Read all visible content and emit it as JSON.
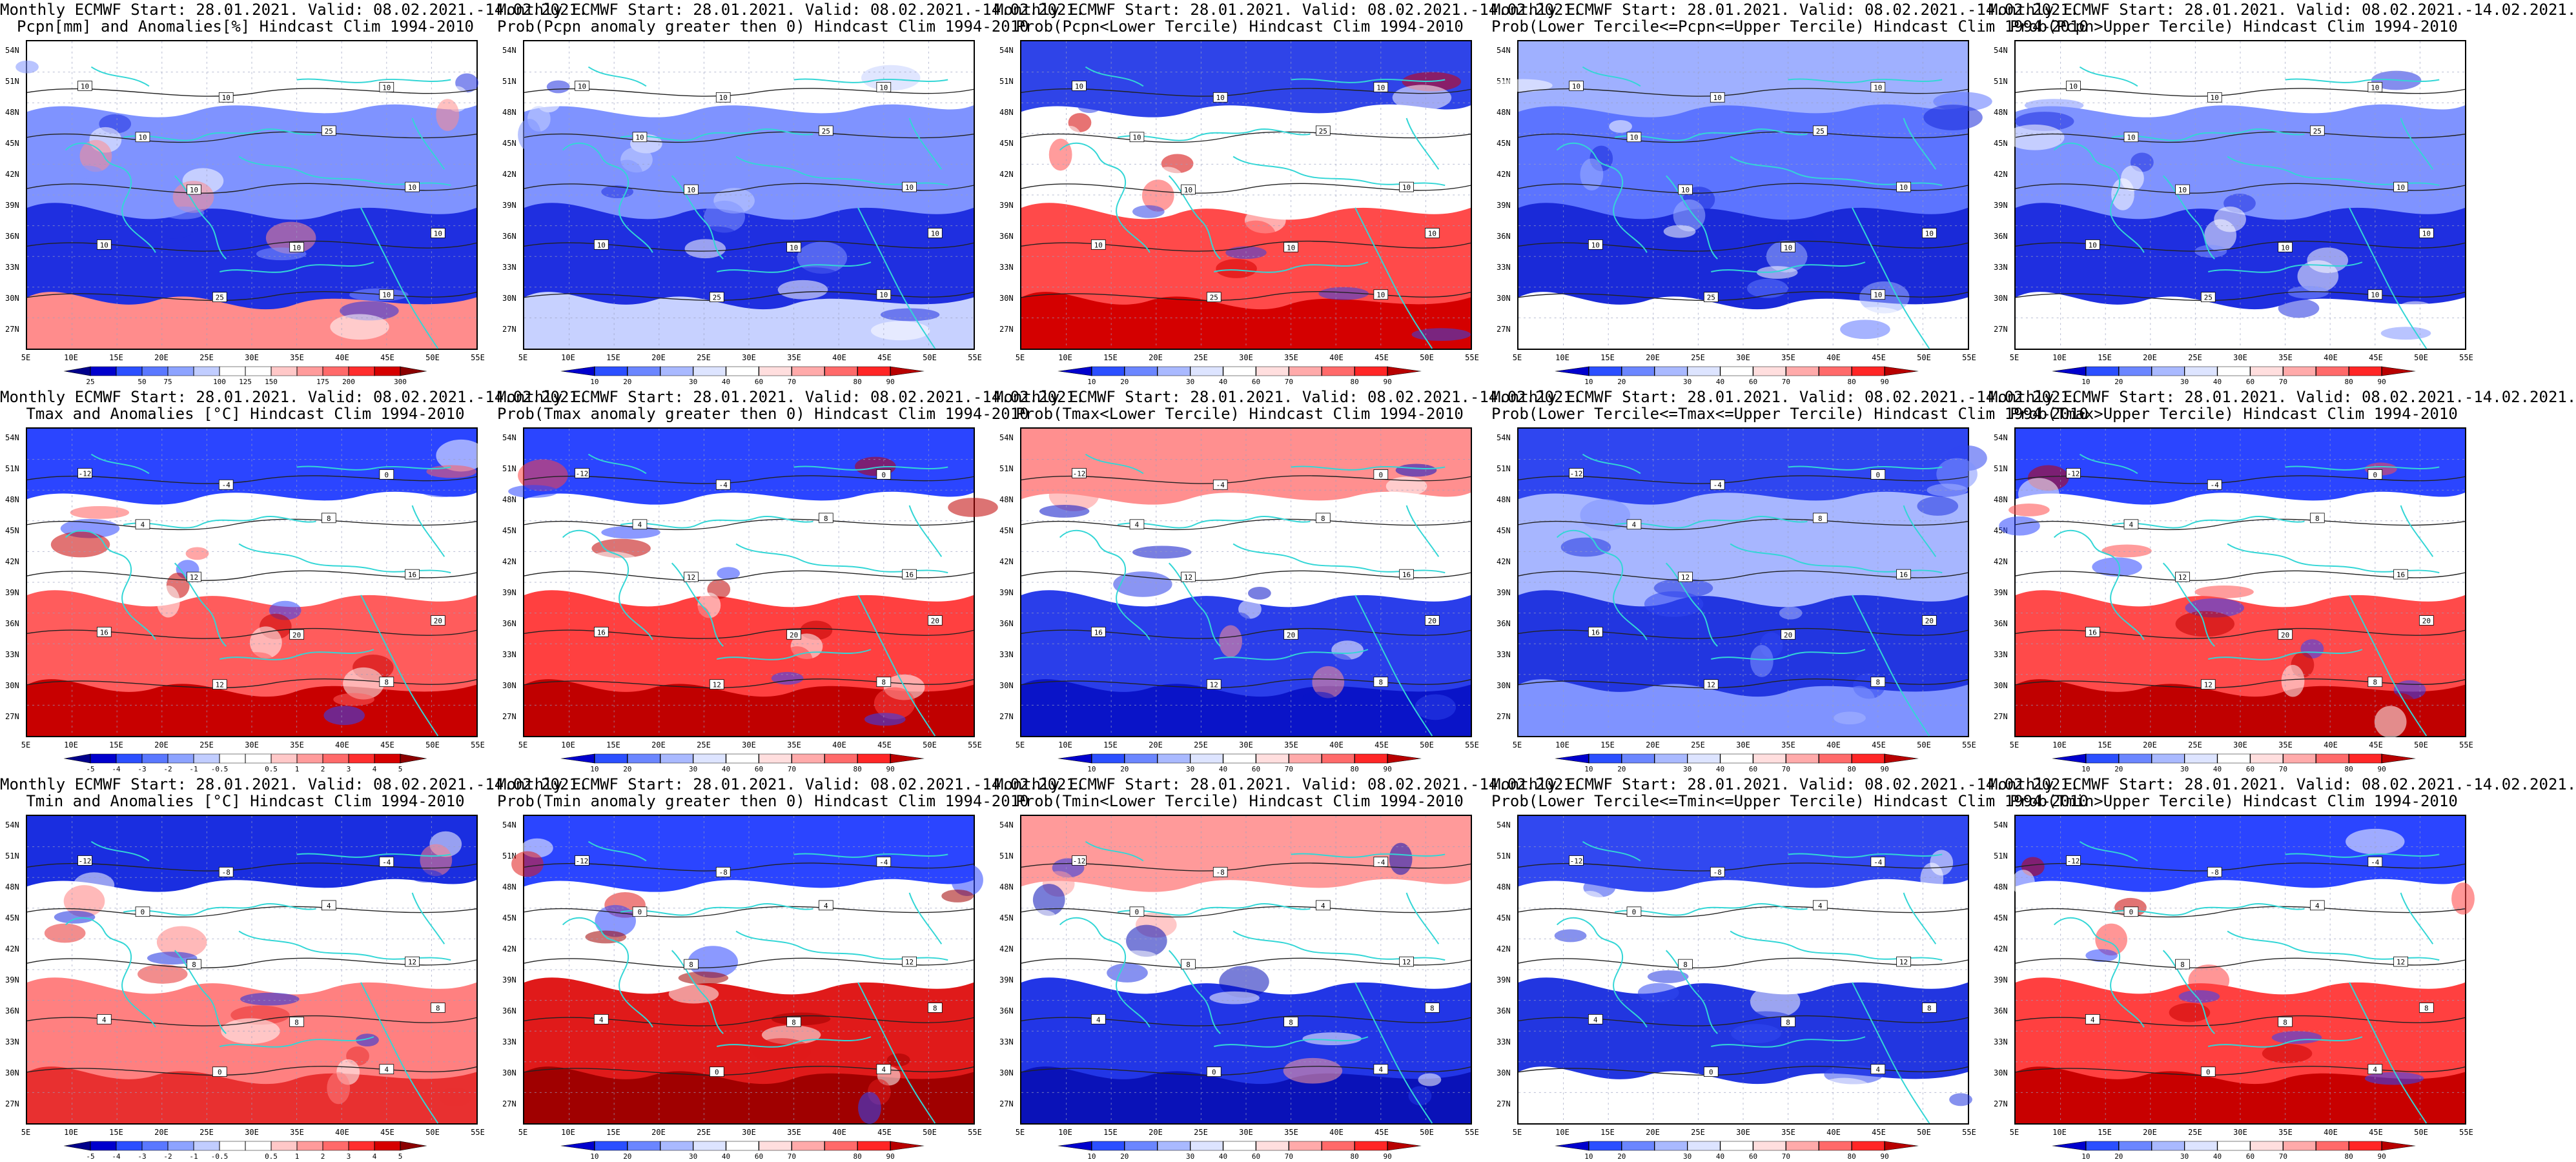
{
  "figure": {
    "background": "#ffffff",
    "coast_color": "#33d6d6",
    "contour_color": "#222222",
    "grid_color": "#9aa0c0"
  },
  "axes": {
    "lat_labels": [
      "54N",
      "51N",
      "48N",
      "45N",
      "42N",
      "39N",
      "36N",
      "33N",
      "30N",
      "27N"
    ],
    "lon_labels": [
      "5E",
      "10E",
      "15E",
      "20E",
      "25E",
      "30E",
      "35E",
      "40E",
      "45E",
      "50E",
      "55E"
    ]
  },
  "colorbars": {
    "pcpn": {
      "labels": [
        "25",
        "50",
        "75",
        "100",
        "125",
        "150",
        "175",
        "200",
        "300"
      ],
      "colors": [
        "#00008b",
        "#0000cd",
        "#2b4fff",
        "#5a78ff",
        "#8da3ff",
        "#c1cdff",
        "#ffffff",
        "#ffffff",
        "#ffc8c8",
        "#ff9b9b",
        "#ff6a6a",
        "#ff2e2e",
        "#d60000",
        "#8b0000"
      ]
    },
    "prob": {
      "labels": [
        "10",
        "20",
        "30",
        "40",
        "60",
        "70",
        "80",
        "90"
      ],
      "colors": [
        "#0000cd",
        "#2b4fff",
        "#6b86ff",
        "#a9b9ff",
        "#dde4ff",
        "#ffffff",
        "#ffdede",
        "#ffaaaa",
        "#ff6a6a",
        "#ff2626",
        "#b80000"
      ]
    },
    "anom": {
      "labels": [
        "-5",
        "-4",
        "-3",
        "-2",
        "-1",
        "-0.5",
        "0.5",
        "1",
        "2",
        "3",
        "4",
        "5"
      ],
      "colors": [
        "#00008b",
        "#0000cd",
        "#2b4fff",
        "#5a78ff",
        "#8da3ff",
        "#c1cdff",
        "#ffffff",
        "#ffffff",
        "#ffc8c8",
        "#ff9b9b",
        "#ff6a6a",
        "#ff2e2e",
        "#d60000",
        "#8b0000"
      ]
    }
  },
  "panels": [
    {
      "title1": "Monthly ECMWF Start: 28.01.2021. Valid: 08.02.2021.-14.02.2021.",
      "title2": "Pcpn[mm] and Anomalies[%] Hindcast Clim 1994-2010",
      "cbar": "pcpn",
      "pal": {
        "n": "#ffffff",
        "m": "#7f93ff",
        "s": "#1f2fe0",
        "e": "#ff8c8c"
      },
      "contours": [
        "10",
        "10",
        "10",
        "10",
        "25",
        "10",
        "10",
        "10",
        "10",
        "25",
        "10",
        "10"
      ]
    },
    {
      "title1": "Monthly ECMWF Start: 28.01.2021. Valid: 08.02.2021.-14.02.2021.",
      "title2": "Prob(Pcpn anomaly greater then 0) Hindcast Clim 1994-2010",
      "cbar": "prob",
      "pal": {
        "n": "#ffffff",
        "m": "#7f93ff",
        "s": "#1f2fe0",
        "e": "#c7d1ff"
      },
      "contours": [
        "10",
        "10",
        "10",
        "10",
        "25",
        "10",
        "10",
        "10",
        "10",
        "25",
        "10",
        "10"
      ]
    },
    {
      "title1": "Monthly ECMWF Start: 28.01.2021. Valid: 08.02.2021.-14.02.2021.",
      "title2": "Prob(Pcpn<Lower Tercile) Hindcast Clim 1994-2010",
      "cbar": "prob",
      "pal": {
        "n": "#2f44e8",
        "m": "#ffffff",
        "s": "#ff4a4a",
        "e": "#d40000"
      },
      "contours": [
        "10",
        "10",
        "10",
        "10",
        "25",
        "10",
        "10",
        "10",
        "10",
        "25",
        "10",
        "10"
      ]
    },
    {
      "title1": "Monthly ECMWF Start: 28.01.2021. Valid: 08.02.2021.-14.02.2021.",
      "title2": "Prob(Lower Tercile<=Pcpn<=Upper Tercile) Hindcast Clim 1994-2010",
      "cbar": "prob",
      "pal": {
        "n": "#9fb0ff",
        "m": "#5c74ff",
        "s": "#1a2ad8",
        "e": "#ffffff"
      },
      "contours": [
        "10",
        "10",
        "10",
        "10",
        "25",
        "10",
        "10",
        "10",
        "10",
        "25",
        "10",
        "10"
      ]
    },
    {
      "title1": "Monthly ECMWF Start: 28.01.2021. Valid: 08.02.2021.-14.02.2021.",
      "title2": "Prob(Pcpn>Upper Tercile) Hindcast Clim 1994-2010",
      "cbar": "prob",
      "pal": {
        "n": "#ffffff",
        "m": "#7f93ff",
        "s": "#1f2fe0",
        "e": "#ffffff"
      },
      "contours": [
        "10",
        "10",
        "10",
        "10",
        "25",
        "10",
        "10",
        "10",
        "10",
        "25",
        "10",
        "10"
      ]
    },
    {
      "title1": "Monthly ECMWF Start: 28.01.2021. Valid: 08.02.2021.-14.02.2021.",
      "title2": "Tmax and Anomalies [°C] Hindcast Clim 1994-2010",
      "cbar": "anom",
      "pal": {
        "n": "#2b45ff",
        "m": "#ffffff",
        "s": "#ff5c5c",
        "e": "#c80000"
      },
      "contours": [
        "-12",
        "-4",
        "0",
        "4",
        "8",
        "12",
        "16",
        "16",
        "20",
        "12",
        "8",
        "20"
      ]
    },
    {
      "title1": "Monthly ECMWF Start: 28.01.2021. Valid: 08.02.2021.-14.02.2021.",
      "title2": "Prob(Tmax anomaly greater then 0) Hindcast Clim 1994-2010",
      "cbar": "prob",
      "pal": {
        "n": "#2b45ff",
        "m": "#ffffff",
        "s": "#ff4040",
        "e": "#c00000"
      },
      "contours": [
        "-12",
        "-4",
        "0",
        "4",
        "8",
        "12",
        "16",
        "16",
        "20",
        "12",
        "8",
        "20"
      ]
    },
    {
      "title1": "Monthly ECMWF Start: 28.01.2021. Valid: 08.02.2021.-14.02.2021.",
      "title2": "Prob(Tmax<Lower Tercile) Hindcast Clim 1994-2010",
      "cbar": "prob",
      "pal": {
        "n": "#ff8f8f",
        "m": "#ffffff",
        "s": "#2a3eea",
        "e": "#0a14c8"
      },
      "contours": [
        "-12",
        "-4",
        "0",
        "4",
        "8",
        "12",
        "16",
        "16",
        "20",
        "12",
        "8",
        "20"
      ]
    },
    {
      "title1": "Monthly ECMWF Start: 28.01.2021. Valid: 08.02.2021.-14.02.2021.",
      "title2": "Prob(Lower Tercile<=Tmax<=Upper Tercile) Hindcast Clim 1994-2010",
      "cbar": "prob",
      "pal": {
        "n": "#2f46f0",
        "m": "#a7b6ff",
        "s": "#2236e0",
        "e": "#7f93ff"
      },
      "contours": [
        "-12",
        "-4",
        "0",
        "4",
        "8",
        "12",
        "16",
        "16",
        "20",
        "12",
        "8",
        "20"
      ]
    },
    {
      "title1": "Monthly ECMWF Start: 28.01.2021. Valid: 08.02.2021.-14.02.2021.",
      "title2": "Prob(Tmax>Upper Tercile) Hindcast Clim 1994-2010",
      "cbar": "prob",
      "pal": {
        "n": "#2b45ff",
        "m": "#ffffff",
        "s": "#ff4a4a",
        "e": "#c00000"
      },
      "contours": [
        "-12",
        "-4",
        "0",
        "4",
        "8",
        "12",
        "16",
        "16",
        "20",
        "12",
        "8",
        "20"
      ]
    },
    {
      "title1": "Monthly ECMWF Start: 28.01.2021. Valid: 08.02.2021.-14.02.2021.",
      "title2": "Tmin and Anomalies [°C] Hindcast Clim 1994-2010",
      "cbar": "anom",
      "pal": {
        "n": "#1a2ee0",
        "m": "#ffffff",
        "s": "#ff8080",
        "e": "#e83030"
      },
      "contours": [
        "-12",
        "-8",
        "-4",
        "0",
        "4",
        "8",
        "12",
        "4",
        "8",
        "0",
        "4",
        "8"
      ]
    },
    {
      "title1": "Monthly ECMWF Start: 28.01.2021. Valid: 08.02.2021.-14.02.2021.",
      "title2": "Prob(Tmin anomaly greater then 0) Hindcast Clim 1994-2010",
      "cbar": "prob",
      "pal": {
        "n": "#2b45ff",
        "m": "#ffffff",
        "s": "#e01a1a",
        "e": "#a00000"
      },
      "contours": [
        "-12",
        "-8",
        "-4",
        "0",
        "4",
        "8",
        "12",
        "4",
        "8",
        "0",
        "4",
        "8"
      ]
    },
    {
      "title1": "Monthly ECMWF Start: 28.01.2021. Valid: 08.02.2021.-14.02.2021.",
      "title2": "Prob(Tmin<Lower Tercile) Hindcast Clim 1994-2010",
      "cbar": "prob",
      "pal": {
        "n": "#ff9a9a",
        "m": "#ffffff",
        "s": "#2236e6",
        "e": "#0a12b8"
      },
      "contours": [
        "-12",
        "-8",
        "-4",
        "0",
        "4",
        "8",
        "12",
        "4",
        "8",
        "0",
        "4",
        "8"
      ]
    },
    {
      "title1": "Monthly ECMWF Start: 28.01.2021. Valid: 08.02.2021.-14.02.2021.",
      "title2": "Prob(Lower Tercile<=Tmin<=Upper Tercile) Hindcast Clim 1994-2010",
      "cbar": "prob",
      "pal": {
        "n": "#3148f0",
        "m": "#ffffff",
        "s": "#2236e0",
        "e": "#ffffff"
      },
      "contours": [
        "-12",
        "-8",
        "-4",
        "0",
        "4",
        "8",
        "12",
        "4",
        "8",
        "0",
        "4",
        "8"
      ]
    },
    {
      "title1": "Monthly ECMWF Start: 28.01.2021. Valid: 08.02.2021.-14.02.2021.",
      "title2": "Prob(Tmin>Upper Tercile) Hindcast Clim 1994-2010",
      "cbar": "prob",
      "pal": {
        "n": "#2b45ff",
        "m": "#ffffff",
        "s": "#ff4040",
        "e": "#c80000"
      },
      "contours": [
        "-12",
        "-8",
        "-4",
        "0",
        "4",
        "8",
        "12",
        "4",
        "8",
        "0",
        "4",
        "8"
      ]
    }
  ]
}
